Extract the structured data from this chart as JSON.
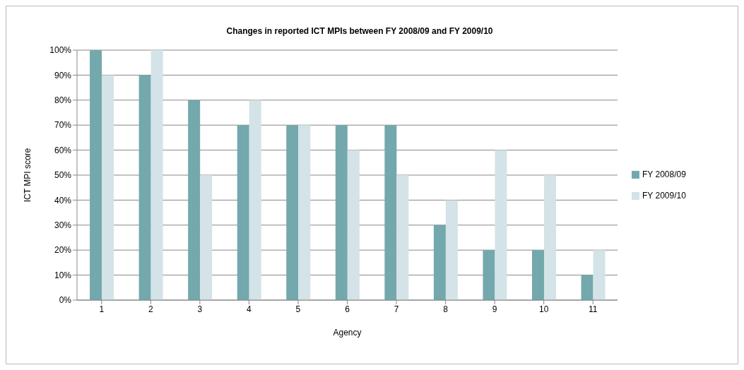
{
  "chart_data": {
    "type": "bar",
    "title": "Changes in reported ICT MPIs between FY 2008/09 and FY 2009/10",
    "xlabel": "Agency",
    "ylabel": "ICT MPI score",
    "categories": [
      "1",
      "2",
      "3",
      "4",
      "5",
      "6",
      "7",
      "8",
      "9",
      "10",
      "11"
    ],
    "series": [
      {
        "name": "FY 2008/09",
        "color": "#73a8ad",
        "values": [
          100,
          90,
          80,
          70,
          70,
          70,
          70,
          30,
          20,
          20,
          10
        ]
      },
      {
        "name": "FY 2009/10",
        "color": "#d3e3e8",
        "values": [
          90,
          100,
          50,
          80,
          70,
          60,
          50,
          40,
          60,
          50,
          20
        ]
      }
    ],
    "ylim": [
      0,
      100
    ],
    "yticks": [
      {
        "value": 0,
        "label": "0%"
      },
      {
        "value": 10,
        "label": "10%"
      },
      {
        "value": 20,
        "label": "20%"
      },
      {
        "value": 30,
        "label": "30%"
      },
      {
        "value": 40,
        "label": "40%"
      },
      {
        "value": 50,
        "label": "50%"
      },
      {
        "value": 60,
        "label": "60%"
      },
      {
        "value": 70,
        "label": "70%"
      },
      {
        "value": 80,
        "label": "80%"
      },
      {
        "value": 90,
        "label": "90%"
      },
      {
        "value": 100,
        "label": "100%"
      }
    ],
    "grid": "y",
    "legend": "right"
  }
}
